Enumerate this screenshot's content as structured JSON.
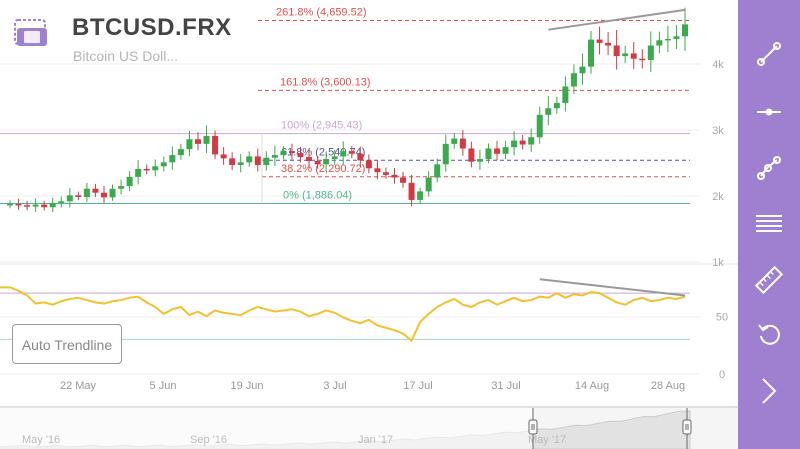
{
  "header": {
    "symbol": "BTCUSD.FRX",
    "description": "Bitcoin US Doll..."
  },
  "auto_trendline_label": "Auto Trendline",
  "colors": {
    "toolbar_bg": "#9f7fd0",
    "candle_up": "#3aaa4d",
    "candle_down": "#d23a45",
    "indicator_line": "#f2c12e",
    "fib_extension": "#e0514e",
    "fib_100": "#c9a7d8",
    "fib_618": "#55559a",
    "fib_382": "#e0514e",
    "fib_0": "#52b788",
    "trendline": "#999999"
  },
  "chart_data": {
    "type": "candlestick",
    "y_axis_ticks": [
      "4k",
      "3k",
      "2k",
      "1k"
    ],
    "indicator_axis_ticks": [
      "50",
      "0"
    ],
    "x_axis_ticks": [
      "22 May",
      "5 Jun",
      "19 Jun",
      "3 Jul",
      "17 Jul",
      "31 Jul",
      "14 Aug",
      "28 Aug"
    ],
    "ylim": [
      600,
      5000
    ],
    "fib_levels": [
      {
        "label": "261.8% (4,659.52)",
        "value": 4659.52
      },
      {
        "label": "161.8% (3,600.13)",
        "value": 3600.13
      },
      {
        "label": "100% (2,945.43)",
        "value": 2945.43
      },
      {
        "label": "61.8% (2,540.74)",
        "value": 2540.74
      },
      {
        "label": "38.2% (2,290.72)",
        "value": 2290.72
      },
      {
        "label": "0% (1,886.04)",
        "value": 1886.04
      }
    ],
    "closes": [
      1880,
      1860,
      1840,
      1870,
      1830,
      1890,
      1920,
      2010,
      1985,
      2110,
      2050,
      1980,
      2110,
      2150,
      2290,
      2410,
      2390,
      2450,
      2510,
      2620,
      2710,
      2860,
      2790,
      2910,
      2630,
      2570,
      2470,
      2510,
      2600,
      2470,
      2580,
      2620,
      2680,
      2650,
      2590,
      2530,
      2480,
      2560,
      2600,
      2680,
      2640,
      2540,
      2420,
      2360,
      2320,
      2280,
      2200,
      1940,
      2070,
      2280,
      2480,
      2790,
      2870,
      2720,
      2520,
      2560,
      2720,
      2640,
      2740,
      2840,
      2780,
      2890,
      3230,
      3330,
      3410,
      3660,
      3860,
      3960,
      4370,
      4320,
      4280,
      4120,
      4160,
      4080,
      4060,
      4280,
      4360,
      4380,
      4420,
      4600
    ],
    "indicator_values": [
      75,
      72,
      68,
      61,
      62,
      60,
      63,
      65,
      66,
      64,
      62,
      61,
      63,
      64,
      66,
      67,
      62,
      58,
      52,
      56,
      58,
      51,
      54,
      50,
      55,
      53,
      52,
      51,
      55,
      58,
      56,
      54,
      55,
      56,
      54,
      50,
      52,
      55,
      53,
      49,
      46,
      44,
      47,
      42,
      40,
      38,
      35,
      29,
      45,
      52,
      58,
      62,
      65,
      60,
      58,
      62,
      64,
      60,
      63,
      66,
      63,
      64,
      67,
      66,
      70,
      66,
      69,
      68,
      71,
      70,
      66,
      62,
      60,
      64,
      66,
      63,
      64,
      66,
      65,
      67
    ],
    "indicator_levels": [
      70,
      30
    ],
    "navigator_labels": [
      "May '16",
      "Sep '16",
      "Jan '17",
      "May '17"
    ]
  },
  "toolbar": {
    "tools": [
      {
        "name": "trend-line-tool-icon"
      },
      {
        "name": "horizontal-line-tool-icon"
      },
      {
        "name": "multi-point-line-tool-icon"
      },
      {
        "name": "fibonacci-tool-icon"
      },
      {
        "name": "ruler-tool-icon"
      },
      {
        "name": "undo-icon"
      },
      {
        "name": "collapse-arrow-icon"
      }
    ]
  }
}
